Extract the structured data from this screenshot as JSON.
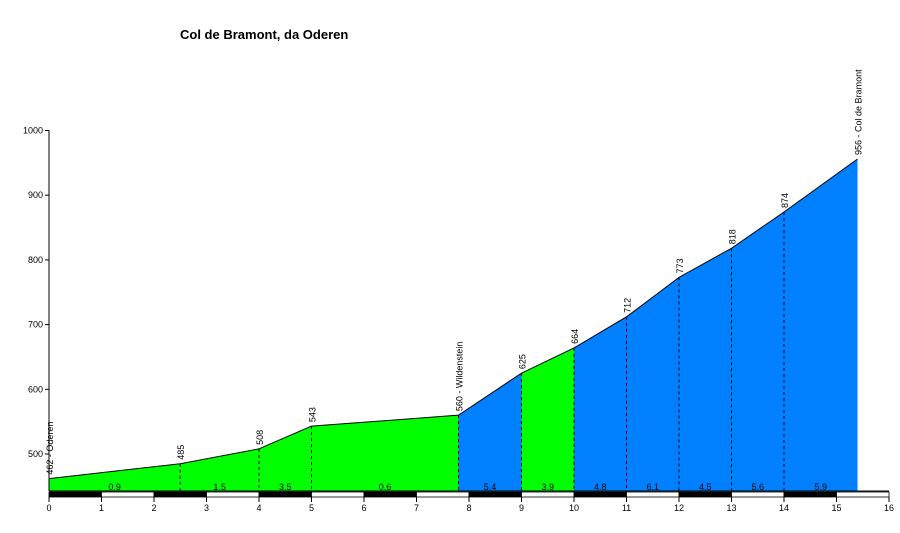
{
  "chart_data": {
    "type": "area",
    "title": "Col de Bramont, da Oderen",
    "xlim": [
      0,
      16
    ],
    "ylim": [
      435,
      1000
    ],
    "x_ticks": [
      0,
      1,
      2,
      3,
      4,
      5,
      6,
      7,
      8,
      9,
      10,
      11,
      12,
      13,
      14,
      15,
      16
    ],
    "y_ticks": [
      500,
      600,
      700,
      800,
      900,
      1000
    ],
    "profile": [
      {
        "x": 0,
        "y": 462,
        "label": "462 - Oderen"
      },
      {
        "x": 2.5,
        "y": 485,
        "label": "485"
      },
      {
        "x": 4.0,
        "y": 508,
        "label": "508"
      },
      {
        "x": 5.0,
        "y": 543,
        "label": "543"
      },
      {
        "x": 7.8,
        "y": 560,
        "label": "560 - Wildenstein"
      },
      {
        "x": 9.0,
        "y": 625,
        "label": "625"
      },
      {
        "x": 10.0,
        "y": 664,
        "label": "664"
      },
      {
        "x": 11.0,
        "y": 712,
        "label": "712"
      },
      {
        "x": 12.0,
        "y": 773,
        "label": "773"
      },
      {
        "x": 13.0,
        "y": 818,
        "label": "818"
      },
      {
        "x": 14.0,
        "y": 874,
        "label": "874"
      },
      {
        "x": 15.4,
        "y": 956,
        "label": "956 - Col de Bramont"
      }
    ],
    "segments": [
      {
        "x0": 0,
        "x1": 2.5,
        "gradient": "0.9",
        "color": "#00ff00"
      },
      {
        "x0": 2.5,
        "x1": 4.0,
        "gradient": "1.5",
        "color": "#00ff00"
      },
      {
        "x0": 4.0,
        "x1": 5.0,
        "gradient": "3.5",
        "color": "#00ff00"
      },
      {
        "x0": 5.0,
        "x1": 7.8,
        "gradient": "0.6",
        "color": "#00ff00"
      },
      {
        "x0": 7.8,
        "x1": 9.0,
        "gradient": "5.4",
        "color": "#0080ff"
      },
      {
        "x0": 9.0,
        "x1": 10.0,
        "gradient": "3.9",
        "color": "#00ff00"
      },
      {
        "x0": 10.0,
        "x1": 11.0,
        "gradient": "4.8",
        "color": "#0080ff"
      },
      {
        "x0": 11.0,
        "x1": 12.0,
        "gradient": "6.1",
        "color": "#0080ff"
      },
      {
        "x0": 12.0,
        "x1": 13.0,
        "gradient": "4.5",
        "color": "#0080ff"
      },
      {
        "x0": 13.0,
        "x1": 14.0,
        "gradient": "5.6",
        "color": "#0080ff"
      },
      {
        "x0": 14.0,
        "x1": 15.4,
        "gradient": "5.9",
        "color": "#0080ff"
      }
    ]
  }
}
